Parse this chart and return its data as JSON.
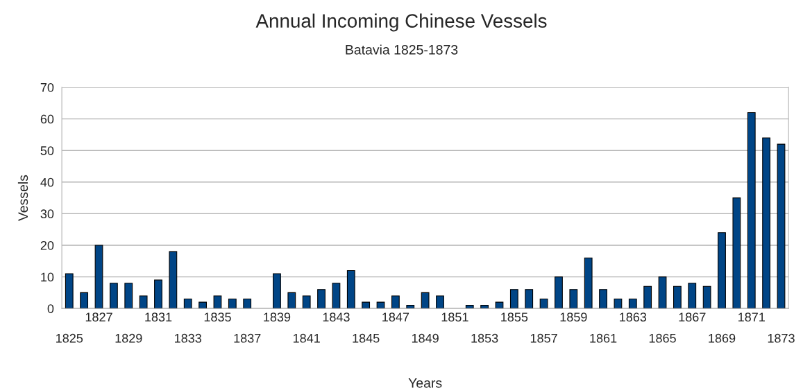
{
  "chart_data": {
    "type": "bar",
    "title": "Annual Incoming Chinese Vessels",
    "subtitle": "Batavia 1825-1873",
    "xlabel": "Years",
    "ylabel": "Vessels",
    "categories": [
      "1825",
      null,
      "1827",
      null,
      "1829",
      null,
      "1831",
      null,
      "1833",
      null,
      "1835",
      null,
      "1837",
      null,
      "1839",
      null,
      "1841",
      null,
      "1843",
      null,
      "1845",
      null,
      "1847",
      null,
      "1849",
      null,
      "1851",
      null,
      "1853",
      null,
      "1855",
      null,
      "1857",
      null,
      "1859",
      null,
      "1861",
      null,
      "1863",
      null,
      "1865",
      null,
      "1867",
      null,
      "1869",
      null,
      "1871",
      null,
      "1873"
    ],
    "values": [
      11,
      5,
      20,
      8,
      8,
      4,
      9,
      18,
      3,
      2,
      4,
      3,
      3,
      null,
      11,
      5,
      4,
      6,
      8,
      12,
      2,
      2,
      4,
      1,
      5,
      4,
      null,
      1,
      1,
      2,
      6,
      6,
      3,
      10,
      6,
      16,
      6,
      3,
      3,
      7,
      10,
      7,
      8,
      7,
      24,
      35,
      62,
      54,
      52
    ],
    "color": "#004586",
    "ylim": [
      0,
      70
    ],
    "yticks": [
      0,
      10,
      20,
      30,
      40,
      50,
      60,
      70
    ],
    "grid": "y"
  }
}
